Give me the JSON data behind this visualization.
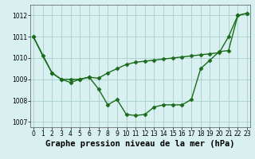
{
  "line1_x": [
    0,
    2,
    3,
    4,
    5,
    6,
    7,
    8,
    9,
    10,
    11,
    12,
    13,
    14,
    15,
    16,
    17,
    18,
    19,
    20,
    21,
    22,
    23
  ],
  "line1_y": [
    1011.0,
    1009.3,
    1009.0,
    1009.0,
    1009.0,
    1009.1,
    1009.05,
    1009.3,
    1009.5,
    1009.7,
    1009.8,
    1009.85,
    1009.9,
    1009.95,
    1010.0,
    1010.05,
    1010.1,
    1010.15,
    1010.2,
    1010.25,
    1011.0,
    1012.0,
    1012.1
  ],
  "line2_x": [
    0,
    1,
    2,
    3,
    4,
    5,
    6,
    7,
    8,
    9,
    10,
    11,
    12,
    13,
    14,
    15,
    16,
    17,
    18,
    19,
    20,
    21,
    22,
    23
  ],
  "line2_y": [
    1011.0,
    1010.1,
    1009.3,
    1009.0,
    1008.85,
    1009.0,
    1009.1,
    1008.55,
    1007.8,
    1008.05,
    1007.35,
    1007.3,
    1007.35,
    1007.7,
    1007.8,
    1007.8,
    1007.8,
    1008.05,
    1009.5,
    1009.9,
    1010.3,
    1010.35,
    1012.0,
    1012.1
  ],
  "background_color": "#d8f0f0",
  "grid_color": "#a8cece",
  "line_color": "#1a6b1a",
  "marker": "D",
  "markersize": 2.5,
  "linewidth": 1.0,
  "xlabel": "Graphe pression niveau de la mer (hPa)",
  "xlabel_fontsize": 7.5,
  "ylim": [
    1006.75,
    1012.5
  ],
  "yticks": [
    1007,
    1008,
    1009,
    1010,
    1011,
    1012
  ],
  "xticks": [
    0,
    1,
    2,
    3,
    4,
    5,
    6,
    7,
    8,
    9,
    10,
    11,
    12,
    13,
    14,
    15,
    16,
    17,
    18,
    19,
    20,
    21,
    22,
    23
  ],
  "tick_fontsize": 5.5
}
